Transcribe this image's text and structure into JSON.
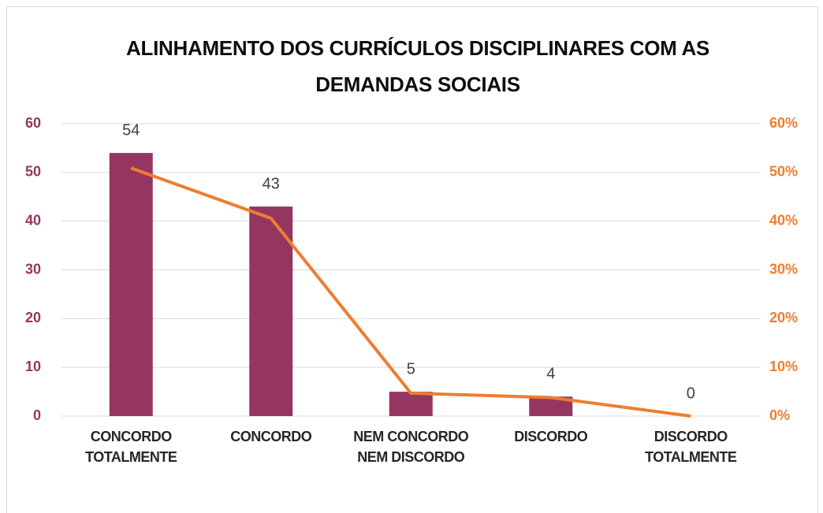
{
  "chart_data": {
    "type": "bar",
    "title": "ALINHAMENTO DOS CURRÍCULOS DISCIPLINARES COM AS DEMANDAS SOCIAIS",
    "categories": [
      "CONCORDO TOTALMENTE",
      "CONCORDO",
      "NEM CONCORDO NEM DISCORDO",
      "DISCORDO",
      "DISCORDO TOTALMENTE"
    ],
    "series": [
      {
        "type": "bar",
        "color": "#953660",
        "values": [
          54,
          43,
          5,
          4,
          0
        ]
      },
      {
        "type": "line",
        "color": "#ed7d31",
        "axis": "y2",
        "values": [
          50.9,
          40.6,
          4.7,
          3.8,
          0
        ]
      }
    ],
    "ylim": [
      0,
      60
    ],
    "yticks": [
      0,
      10,
      20,
      30,
      40,
      50,
      60
    ],
    "ytick_color": "#953660",
    "y2lim": [
      0,
      60
    ],
    "y2ticks": [
      {
        "value": 0,
        "label": "0%"
      },
      {
        "value": 10,
        "label": "10%"
      },
      {
        "value": 20,
        "label": "20%"
      },
      {
        "value": 30,
        "label": "30%"
      },
      {
        "value": 40,
        "label": "40%"
      },
      {
        "value": 50,
        "label": "50%"
      },
      {
        "value": 60,
        "label": "60%"
      }
    ],
    "y2tick_color": "#ed7d31",
    "grid": true
  }
}
